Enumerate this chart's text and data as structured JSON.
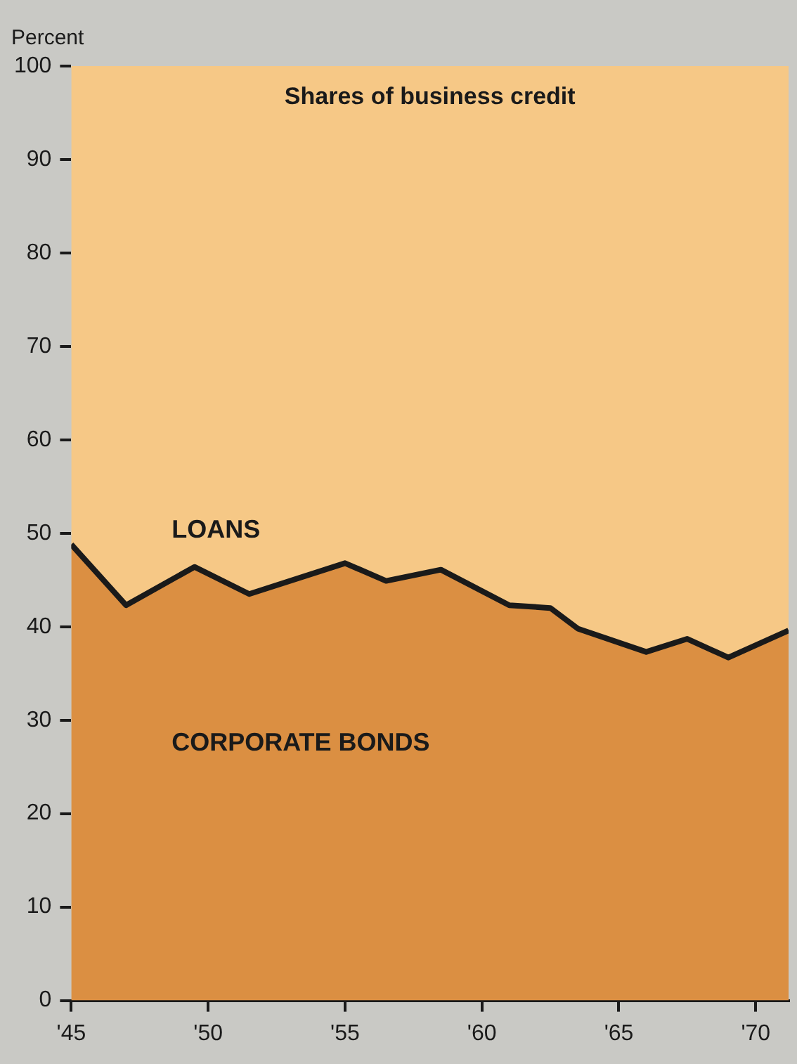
{
  "chart_data": {
    "type": "area",
    "title": "Shares of business credit",
    "ylabel": "Percent",
    "stacked": true,
    "x": [
      1945,
      1947,
      1949.5,
      1951.5,
      1955,
      1956.5,
      1958.5,
      1961,
      1962.5,
      1963.5,
      1966,
      1967.5,
      1969,
      1971.2
    ],
    "series": [
      {
        "name": "CORPORATE BONDS",
        "color": "#db8f42",
        "values": [
          48.8,
          42.3,
          46.4,
          43.5,
          46.8,
          44.9,
          46.1,
          42.3,
          42.0,
          39.8,
          37.3,
          38.7,
          36.7,
          39.6
        ]
      },
      {
        "name": "LOANS",
        "color": "#f6c886",
        "values": [
          51.2,
          57.7,
          53.6,
          56.5,
          53.2,
          55.1,
          53.9,
          57.7,
          58.0,
          60.2,
          62.7,
          61.3,
          63.3,
          60.4
        ]
      }
    ],
    "xlim": [
      1945,
      1971.2
    ],
    "ylim": [
      0,
      100
    ],
    "xticks": [
      {
        "value": 1945,
        "label": "'45"
      },
      {
        "value": 1950,
        "label": "'50"
      },
      {
        "value": 1955,
        "label": "'55"
      },
      {
        "value": 1960,
        "label": "'60"
      },
      {
        "value": 1965,
        "label": "'65"
      },
      {
        "value": 1970,
        "label": "'70"
      }
    ],
    "yticks": [
      0,
      10,
      20,
      30,
      40,
      50,
      60,
      70,
      80,
      90,
      100
    ],
    "grid": false,
    "legend": false
  }
}
